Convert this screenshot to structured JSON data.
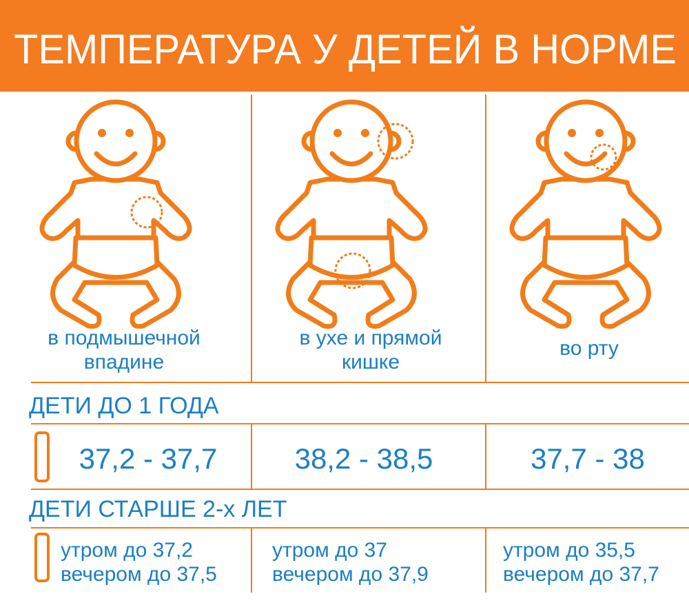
{
  "header": {
    "title": "ТЕМПЕРАТУРА У ДЕТЕЙ В НОРМЕ"
  },
  "columns": [
    {
      "label": [
        "в подмышечной",
        "впадине"
      ]
    },
    {
      "label": [
        "в ухе и прямой",
        "кишке"
      ]
    },
    {
      "label": [
        "во рту"
      ]
    }
  ],
  "sections": [
    {
      "title": "ДЕТИ ДО 1 ГОДА",
      "values": [
        "37,2 - 37,7",
        "38,2 - 38,5",
        "37,7 - 38"
      ]
    },
    {
      "title": "ДЕТИ СТАРШЕ 2-х ЛЕТ",
      "values": [
        [
          "утром до 37,2",
          "вечером до 37,5"
        ],
        [
          "утром до 37",
          "вечером до 37,9"
        ],
        [
          "утром до 35,5",
          "вечером до 37,7"
        ]
      ]
    }
  ]
}
